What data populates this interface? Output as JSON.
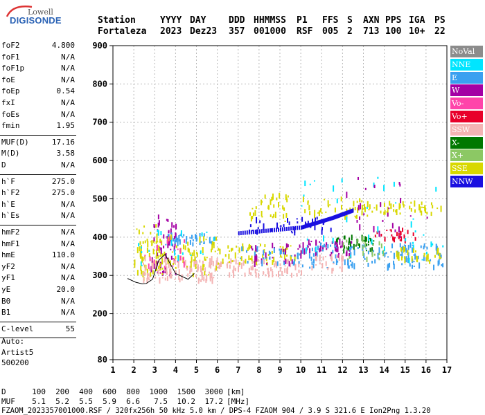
{
  "logo": {
    "top": "Lowell",
    "bottom": "DIGISONDE"
  },
  "header": {
    "row1": [
      "Station",
      "YYYY",
      "DAY",
      "DDD",
      "HHMMSS",
      "P1",
      "FFS",
      "S",
      "AXN",
      "PPS",
      "IGA",
      "PS"
    ],
    "row2": [
      "Fortaleza",
      "2023",
      "Dez23",
      "357",
      "001000",
      "RSF",
      "005",
      "2",
      "713",
      "100",
      "10+",
      "22"
    ]
  },
  "params": [
    {
      "group": 1,
      "items": [
        {
          "name": "foF2",
          "value": "4.800"
        },
        {
          "name": "foF1",
          "value": "N/A"
        },
        {
          "name": "foF1p",
          "value": "N/A"
        },
        {
          "name": "foE",
          "value": "N/A"
        },
        {
          "name": "foEp",
          "value": "0.54"
        },
        {
          "name": "fxI",
          "value": "N/A"
        },
        {
          "name": "foEs",
          "value": "N/A"
        },
        {
          "name": "fmin",
          "value": "1.95"
        }
      ]
    },
    {
      "group": 2,
      "items": [
        {
          "name": "MUF(D)",
          "value": "17.16"
        },
        {
          "name": "M(D)",
          "value": "3.58"
        },
        {
          "name": "D",
          "value": "N/A"
        }
      ]
    },
    {
      "group": 3,
      "items": [
        {
          "name": "h`F",
          "value": "275.0"
        },
        {
          "name": "h`F2",
          "value": "275.0"
        },
        {
          "name": "h`E",
          "value": "N/A"
        },
        {
          "name": "h`Es",
          "value": "N/A"
        }
      ]
    },
    {
      "group": 4,
      "items": [
        {
          "name": "hmF2",
          "value": "N/A"
        },
        {
          "name": "hmF1",
          "value": "N/A"
        },
        {
          "name": "hmE",
          "value": "110.0"
        },
        {
          "name": "yF2",
          "value": "N/A"
        },
        {
          "name": "yF1",
          "value": "N/A"
        },
        {
          "name": "yE",
          "value": "20.0"
        },
        {
          "name": "B0",
          "value": "N/A"
        },
        {
          "name": "B1",
          "value": "N/A"
        }
      ]
    },
    {
      "group": 5,
      "items": [
        {
          "name": "C-level",
          "value": "55"
        }
      ]
    }
  ],
  "autoscale": {
    "line1": "Auto:",
    "line2": "Artist5",
    "line3": "500200"
  },
  "legend": [
    {
      "label": "NoVal",
      "color": "#8c8c8c",
      "text_color": "#ffffff"
    },
    {
      "label": "NNE",
      "color": "#00e5ff",
      "text_color": "#ffffff"
    },
    {
      "label": "E",
      "color": "#3aa0f0",
      "text_color": "#ffffff"
    },
    {
      "label": "W",
      "color": "#a400a4",
      "text_color": "#ffffff"
    },
    {
      "label": "Vo-",
      "color": "#ff44aa",
      "text_color": "#ffffff"
    },
    {
      "label": "Vo+",
      "color": "#e8002a",
      "text_color": "#ffffff"
    },
    {
      "label": "SSW",
      "color": "#f4b4b4",
      "text_color": "#ffffff"
    },
    {
      "label": "X-",
      "color": "#007800",
      "text_color": "#ffffff"
    },
    {
      "label": "X+",
      "color": "#8cc864",
      "text_color": "#ffffff"
    },
    {
      "label": "SSE",
      "color": "#d8d800",
      "text_color": "#ffffff"
    },
    {
      "label": "NNW",
      "color": "#1a10e0",
      "text_color": "#ffffff"
    }
  ],
  "chart_data": {
    "type": "scatter",
    "title": "",
    "xlabel": "",
    "ylabel": "",
    "xlim": [
      1,
      17
    ],
    "ylim": [
      80,
      900
    ],
    "x_ticks": [
      1,
      2,
      3,
      4,
      5,
      6,
      7,
      8,
      9,
      10,
      11,
      12,
      13,
      14,
      15,
      16,
      17
    ],
    "y_ticks": [
      80,
      200,
      300,
      400,
      500,
      600,
      700,
      800,
      900
    ],
    "grid": true,
    "trace": {
      "x": [
        1.7,
        2.1,
        2.4,
        2.6,
        2.9,
        3.2,
        3.5,
        4.0,
        4.6,
        4.9
      ],
      "y": [
        292,
        282,
        278,
        279,
        290,
        340,
        355,
        305,
        290,
        305
      ]
    },
    "clusters": [
      {
        "series": "SSE",
        "x": [
          2.0,
          3.3
        ],
        "y": [
          290,
          430
        ],
        "n": 60
      },
      {
        "series": "W",
        "x": [
          2.8,
          4.0
        ],
        "y": [
          300,
          460
        ],
        "n": 55
      },
      {
        "series": "SSW",
        "x": [
          2.4,
          6.0
        ],
        "y": [
          285,
          345
        ],
        "n": 120
      },
      {
        "series": "E",
        "x": [
          3.5,
          6.0
        ],
        "y": [
          380,
          410
        ],
        "n": 45
      },
      {
        "series": "SSE",
        "x": [
          3.0,
          6.0
        ],
        "y": [
          300,
          400
        ],
        "n": 60
      },
      {
        "series": "Vo-",
        "x": [
          2.5,
          4.5
        ],
        "y": [
          300,
          400
        ],
        "n": 25
      },
      {
        "series": "NNE",
        "x": [
          2.0,
          6.0
        ],
        "y": [
          320,
          420
        ],
        "n": 20
      },
      {
        "series": "SSW",
        "x": [
          6.0,
          10.0
        ],
        "y": [
          300,
          340
        ],
        "n": 80
      },
      {
        "series": "SSE",
        "x": [
          6.0,
          10.0
        ],
        "y": [
          330,
          380
        ],
        "n": 60
      },
      {
        "series": "W",
        "x": [
          7.5,
          10.0
        ],
        "y": [
          330,
          380
        ],
        "n": 30
      },
      {
        "series": "E",
        "x": [
          7.0,
          10.0
        ],
        "y": [
          330,
          370
        ],
        "n": 30
      },
      {
        "series": "SSE",
        "x": [
          7.5,
          9.5
        ],
        "y": [
          440,
          510
        ],
        "n": 35
      },
      {
        "series": "NNW",
        "x": [
          7.5,
          11.5
        ],
        "y": [
          410,
          450
        ],
        "n": 40
      },
      {
        "series": "SSE",
        "x": [
          10.0,
          13.5
        ],
        "y": [
          450,
          500
        ],
        "n": 40
      },
      {
        "series": "E",
        "x": [
          10.0,
          16.8
        ],
        "y": [
          320,
          380
        ],
        "n": 120
      },
      {
        "series": "X-",
        "x": [
          11.5,
          13.5
        ],
        "y": [
          360,
          400
        ],
        "n": 40
      },
      {
        "series": "W",
        "x": [
          10.0,
          12.5
        ],
        "y": [
          350,
          390
        ],
        "n": 40
      },
      {
        "series": "SSW",
        "x": [
          10.5,
          12.0
        ],
        "y": [
          310,
          350
        ],
        "n": 30
      },
      {
        "series": "Vo+",
        "x": [
          13.5,
          15.5
        ],
        "y": [
          390,
          420
        ],
        "n": 25
      },
      {
        "series": "SSE",
        "x": [
          12.5,
          16.8
        ],
        "y": [
          460,
          490
        ],
        "n": 50
      },
      {
        "series": "NNE",
        "x": [
          10.0,
          16.8
        ],
        "y": [
          330,
          560
        ],
        "n": 40
      },
      {
        "series": "W",
        "x": [
          12.0,
          16.5
        ],
        "y": [
          400,
          560
        ],
        "n": 25
      },
      {
        "series": "SSE",
        "x": [
          14.5,
          16.8
        ],
        "y": [
          330,
          370
        ],
        "n": 30
      },
      {
        "series": "X+",
        "x": [
          12.0,
          14.0
        ],
        "y": [
          340,
          400
        ],
        "n": 20
      }
    ],
    "oblique_trace": {
      "series": "NNW",
      "x": [
        7.0,
        10.0,
        11.5,
        12.5
      ],
      "y": [
        410,
        425,
        450,
        470
      ]
    }
  },
  "footer": {
    "d_label": "D",
    "d_values": [
      "100",
      "200",
      "400",
      "600",
      "800",
      "1000",
      "1500",
      "3000",
      "[km]"
    ],
    "muf_label": "MUF",
    "muf_values": [
      "5.1",
      "5.2",
      "5.5",
      "5.9",
      "6.6",
      "7.5",
      "10.2",
      "17.2",
      "[MHz]"
    ],
    "info": "FZAOM_2023357001000.RSF / 320fx256h 50 kHz 5.0 km / DPS-4 FZAOM 904 / 3.9 S 321.6 E   Ion2Png 1.3.20"
  }
}
